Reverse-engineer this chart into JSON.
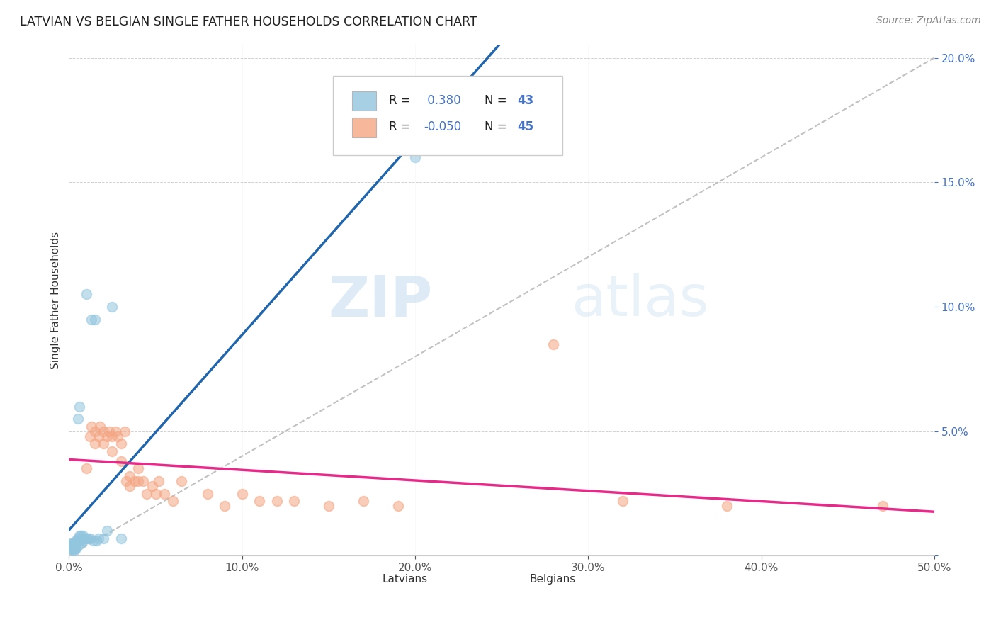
{
  "title": "LATVIAN VS BELGIAN SINGLE FATHER HOUSEHOLDS CORRELATION CHART",
  "source": "Source: ZipAtlas.com",
  "ylabel": "Single Father Households",
  "watermark_zip": "ZIP",
  "watermark_atlas": "atlas",
  "latvian_R": 0.38,
  "latvian_N": 43,
  "belgian_R": -0.05,
  "belgian_N": 45,
  "latvian_color": "#92c5de",
  "belgian_color": "#f4a582",
  "trend_latvian_color": "#2166ac",
  "trend_belgian_color": "#e7298a",
  "diagonal_color": "#bbbbbb",
  "xlim": [
    0.0,
    0.5
  ],
  "ylim": [
    0.0,
    0.205
  ],
  "latvian_x": [
    0.001,
    0.001,
    0.001,
    0.002,
    0.002,
    0.002,
    0.002,
    0.003,
    0.003,
    0.003,
    0.003,
    0.003,
    0.003,
    0.004,
    0.004,
    0.004,
    0.004,
    0.005,
    0.005,
    0.005,
    0.005,
    0.006,
    0.006,
    0.006,
    0.007,
    0.007,
    0.008,
    0.008,
    0.009,
    0.01,
    0.01,
    0.011,
    0.012,
    0.013,
    0.014,
    0.015,
    0.016,
    0.017,
    0.02,
    0.022,
    0.025,
    0.03,
    0.2
  ],
  "latvian_y": [
    0.005,
    0.004,
    0.003,
    0.005,
    0.004,
    0.003,
    0.002,
    0.005,
    0.005,
    0.004,
    0.003,
    0.003,
    0.002,
    0.006,
    0.005,
    0.004,
    0.003,
    0.055,
    0.007,
    0.006,
    0.004,
    0.06,
    0.008,
    0.006,
    0.008,
    0.005,
    0.008,
    0.006,
    0.007,
    0.105,
    0.007,
    0.007,
    0.007,
    0.095,
    0.006,
    0.095,
    0.006,
    0.007,
    0.007,
    0.01,
    0.1,
    0.007,
    0.16
  ],
  "belgian_x": [
    0.01,
    0.012,
    0.013,
    0.015,
    0.015,
    0.017,
    0.018,
    0.02,
    0.02,
    0.022,
    0.023,
    0.025,
    0.025,
    0.027,
    0.028,
    0.03,
    0.03,
    0.032,
    0.033,
    0.035,
    0.035,
    0.038,
    0.04,
    0.04,
    0.043,
    0.045,
    0.048,
    0.05,
    0.052,
    0.055,
    0.06,
    0.065,
    0.08,
    0.09,
    0.1,
    0.11,
    0.12,
    0.13,
    0.15,
    0.17,
    0.19,
    0.28,
    0.32,
    0.38,
    0.47
  ],
  "belgian_y": [
    0.035,
    0.048,
    0.052,
    0.045,
    0.05,
    0.048,
    0.052,
    0.05,
    0.045,
    0.048,
    0.05,
    0.042,
    0.048,
    0.05,
    0.048,
    0.038,
    0.045,
    0.05,
    0.03,
    0.028,
    0.032,
    0.03,
    0.03,
    0.035,
    0.03,
    0.025,
    0.028,
    0.025,
    0.03,
    0.025,
    0.022,
    0.03,
    0.025,
    0.02,
    0.025,
    0.022,
    0.022,
    0.022,
    0.02,
    0.022,
    0.02,
    0.085,
    0.022,
    0.02,
    0.02
  ]
}
